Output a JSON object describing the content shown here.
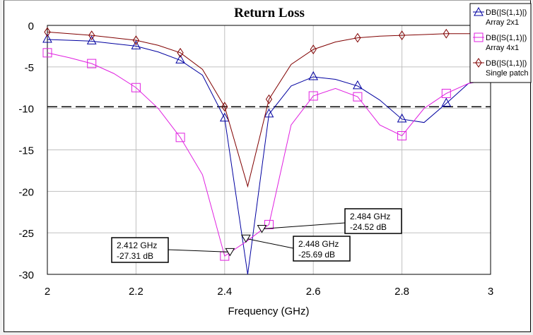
{
  "chart_data": {
    "type": "line",
    "title": "Return Loss",
    "xlabel": "Frequency (GHz)",
    "ylabel": "",
    "xlim": [
      2,
      3
    ],
    "ylim": [
      -30,
      0
    ],
    "xticks": [
      "2",
      "2.2",
      "2.4",
      "2.6",
      "2.8",
      "3"
    ],
    "yticks": [
      "0",
      "-5",
      "-10",
      "-15",
      "-20",
      "-25",
      "-30"
    ],
    "grid": true,
    "legend_position": "top-right",
    "reference_line": {
      "y": -9.8,
      "style": "dashed"
    },
    "series": [
      {
        "name": "DB(|S(1,1)|)",
        "subtitle": "Array 2x1",
        "color": "#0000a0",
        "marker": "triangle",
        "x": [
          2.0,
          2.05,
          2.1,
          2.15,
          2.2,
          2.25,
          2.3,
          2.35,
          2.4,
          2.452,
          2.5,
          2.55,
          2.6,
          2.65,
          2.7,
          2.75,
          2.8,
          2.85,
          2.9,
          2.95,
          3.0
        ],
        "y": [
          -1.7,
          -1.8,
          -1.9,
          -2.2,
          -2.5,
          -3.2,
          -4.2,
          -6.0,
          -11.2,
          -30.0,
          -10.7,
          -7.3,
          -6.2,
          -6.5,
          -7.3,
          -9.0,
          -11.3,
          -11.7,
          -9.4,
          -7.0,
          -6.5
        ]
      },
      {
        "name": "DB(|S(1,1)|)",
        "subtitle": "Array 4x1",
        "color": "#e020e0",
        "marker": "square",
        "x": [
          2.0,
          2.05,
          2.1,
          2.15,
          2.2,
          2.25,
          2.3,
          2.35,
          2.4,
          2.45,
          2.5,
          2.55,
          2.6,
          2.65,
          2.7,
          2.75,
          2.8,
          2.85,
          2.9,
          2.95,
          3.0
        ],
        "y": [
          -3.3,
          -3.9,
          -4.6,
          -5.8,
          -7.5,
          -10.0,
          -13.5,
          -18.0,
          -27.8,
          -26.0,
          -24.0,
          -12.0,
          -8.5,
          -7.6,
          -8.6,
          -12.0,
          -13.3,
          -10.0,
          -8.2,
          -7.0,
          -6.5
        ]
      },
      {
        "name": "DB(|S(1,1)|)",
        "subtitle": "Single patch",
        "color": "#800000",
        "marker": "diamond",
        "x": [
          2.0,
          2.05,
          2.1,
          2.15,
          2.2,
          2.25,
          2.3,
          2.35,
          2.4,
          2.452,
          2.5,
          2.55,
          2.6,
          2.65,
          2.7,
          2.75,
          2.8,
          2.85,
          2.9,
          2.95,
          3.0
        ],
        "y": [
          -0.8,
          -1.0,
          -1.2,
          -1.5,
          -1.8,
          -2.4,
          -3.3,
          -5.3,
          -9.8,
          -19.4,
          -8.9,
          -4.7,
          -2.9,
          -2.0,
          -1.5,
          -1.3,
          -1.2,
          -1.1,
          -1.0,
          -1.0,
          -1.0
        ]
      }
    ],
    "annotations": [
      {
        "x": 2.412,
        "y": -27.31,
        "line1": "2.412 GHz",
        "line2": "-27.31 dB"
      },
      {
        "x": 2.448,
        "y": -25.69,
        "line1": "2.448 GHz",
        "line2": "-25.69 dB"
      },
      {
        "x": 2.484,
        "y": -24.52,
        "line1": "2.484 GHz",
        "line2": "-24.52 dB"
      }
    ]
  }
}
